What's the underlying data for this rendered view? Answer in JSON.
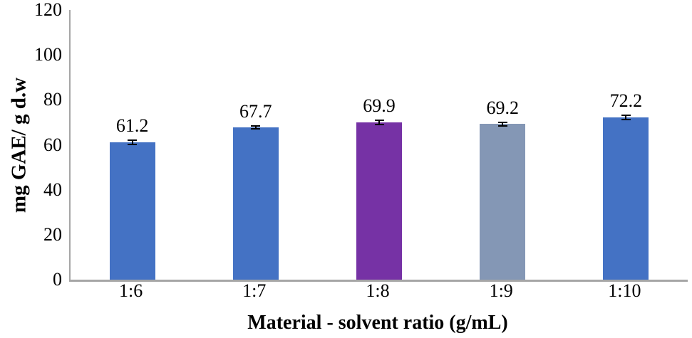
{
  "chart_data": {
    "type": "bar",
    "categories": [
      "1:6",
      "1:7",
      "1:8",
      "1:9",
      "1:10"
    ],
    "values": [
      61.2,
      67.7,
      69.9,
      69.2,
      72.2
    ],
    "data_labels": [
      "61.2",
      "67.7",
      "69.9",
      "69.2",
      "72.2"
    ],
    "errors": [
      1.2,
      1.0,
      1.2,
      1.1,
      1.2
    ],
    "bar_colors": [
      "#4472C4",
      "#4472C4",
      "#7632A5",
      "#8497B5",
      "#4472C4"
    ],
    "title": "",
    "xlabel": "Material - solvent ratio (g/mL)",
    "ylabel": "mg GAE/ g d.w",
    "ylim": [
      0,
      120
    ],
    "yticks": [
      0,
      20,
      40,
      60,
      80,
      100,
      120
    ],
    "grid": false,
    "legend_position": "none",
    "axis_color": "#A6A6A6",
    "text_color": "#000000",
    "background_color": "#FFFFFF",
    "error_bar_color": "#000000"
  }
}
